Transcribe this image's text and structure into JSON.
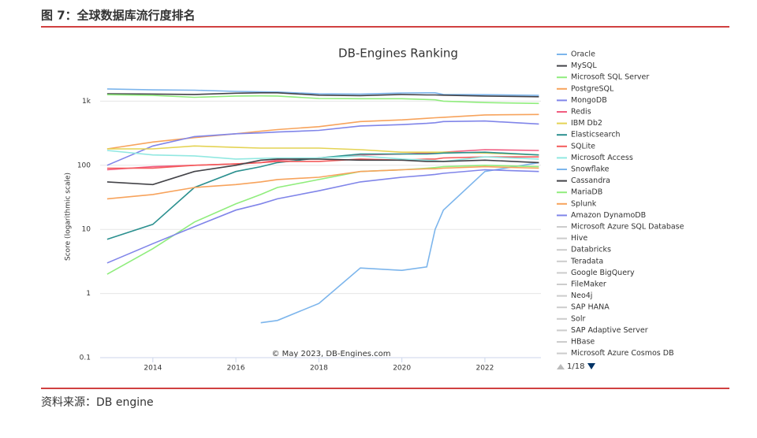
{
  "header": {
    "title": "图 7：全球数据库流行度排名"
  },
  "source": "资料来源：DB engine",
  "chart_data": {
    "type": "line",
    "title": "DB-Engines Ranking",
    "y_label": "Score (logarithmic scale)",
    "credit": "© May 2023, DB-Engines.com",
    "log_y": true,
    "grid": true,
    "legend_position": "right",
    "x": [
      2012.9,
      2014,
      2015,
      2016,
      2016.6,
      2017,
      2018,
      2019,
      2020,
      2020.6,
      2020.8,
      2021,
      2022,
      2023.3
    ],
    "xlim": [
      2012.73,
      2023.35
    ],
    "xticks": [
      2014,
      2016,
      2018,
      2020,
      2022
    ],
    "ylim": [
      0.1,
      2500
    ],
    "yticks": [
      0.1,
      1,
      10,
      100,
      {
        "value": 1000,
        "label": "1k"
      }
    ],
    "series": [
      {
        "name": "Oracle",
        "color": "#7cb5ec",
        "values": [
          1550,
          1500,
          1480,
          1420,
          1400,
          1390,
          1300,
          1290,
          1340,
          1350,
          1350,
          1270,
          1260,
          1230
        ]
      },
      {
        "name": "MySQL",
        "color": "#434348",
        "values": [
          1300,
          1290,
          1270,
          1330,
          1350,
          1350,
          1240,
          1220,
          1270,
          1250,
          1250,
          1240,
          1200,
          1170
        ]
      },
      {
        "name": "Microsoft SQL Server",
        "color": "#90ed7d",
        "values": [
          1260,
          1230,
          1150,
          1200,
          1210,
          1200,
          1100,
          1090,
          1090,
          1060,
          1050,
          1000,
          950,
          920
        ]
      },
      {
        "name": "PostgreSQL",
        "color": "#f7a35c",
        "values": [
          180,
          230,
          270,
          310,
          340,
          360,
          400,
          480,
          510,
          540,
          550,
          560,
          610,
          620
        ]
      },
      {
        "name": "MongoDB",
        "color": "#8085e9",
        "values": [
          100,
          200,
          280,
          310,
          320,
          330,
          350,
          410,
          430,
          450,
          460,
          480,
          490,
          440
        ]
      },
      {
        "name": "Redis",
        "color": "#f15c80",
        "values": [
          85,
          95,
          100,
          105,
          110,
          120,
          130,
          145,
          150,
          155,
          155,
          160,
          175,
          170
        ]
      },
      {
        "name": "IBM Db2",
        "color": "#e4d354",
        "values": [
          180,
          180,
          200,
          190,
          185,
          185,
          185,
          175,
          160,
          160,
          160,
          160,
          155,
          145
        ]
      },
      {
        "name": "Elasticsearch",
        "color": "#2b908f",
        "values": [
          7,
          12,
          45,
          80,
          95,
          110,
          130,
          150,
          150,
          150,
          152,
          155,
          160,
          145
        ]
      },
      {
        "name": "SQLite",
        "color": "#f45b5b",
        "values": [
          90,
          90,
          100,
          105,
          110,
          115,
          115,
          125,
          120,
          125,
          125,
          130,
          135,
          135
        ]
      },
      {
        "name": "Microsoft Access",
        "color": "#91e8e1",
        "values": [
          170,
          145,
          140,
          125,
          128,
          130,
          130,
          140,
          125,
          120,
          118,
          115,
          135,
          125
        ]
      },
      {
        "name": "Snowflake",
        "color": "#7cb5ec",
        "values": [
          null,
          null,
          null,
          null,
          0.35,
          0.38,
          0.7,
          2.5,
          2.3,
          2.6,
          10,
          20,
          80,
          110
        ]
      },
      {
        "name": "Cassandra",
        "color": "#434348",
        "values": [
          55,
          50,
          80,
          100,
          120,
          125,
          125,
          120,
          120,
          115,
          115,
          115,
          120,
          110
        ]
      },
      {
        "name": "MariaDB",
        "color": "#90ed7d",
        "values": [
          2,
          5,
          13,
          25,
          35,
          45,
          60,
          80,
          85,
          90,
          92,
          95,
          100,
          95
        ]
      },
      {
        "name": "Splunk",
        "color": "#f7a35c",
        "values": [
          30,
          35,
          45,
          50,
          55,
          60,
          65,
          80,
          85,
          88,
          88,
          90,
          95,
          90
        ]
      },
      {
        "name": "Amazon DynamoDB",
        "color": "#8085e9",
        "values": [
          3,
          6,
          11,
          20,
          25,
          30,
          40,
          55,
          65,
          70,
          72,
          75,
          85,
          80
        ]
      }
    ],
    "legend_inactive": [
      "Microsoft Azure SQL Database",
      "Hive",
      "Databricks",
      "Teradata",
      "Google BigQuery",
      "FileMaker",
      "Neo4j",
      "SAP HANA",
      "Solr",
      "SAP Adaptive Server",
      "HBase",
      "Microsoft Azure Cosmos DB"
    ],
    "legend_page": "1/18"
  }
}
